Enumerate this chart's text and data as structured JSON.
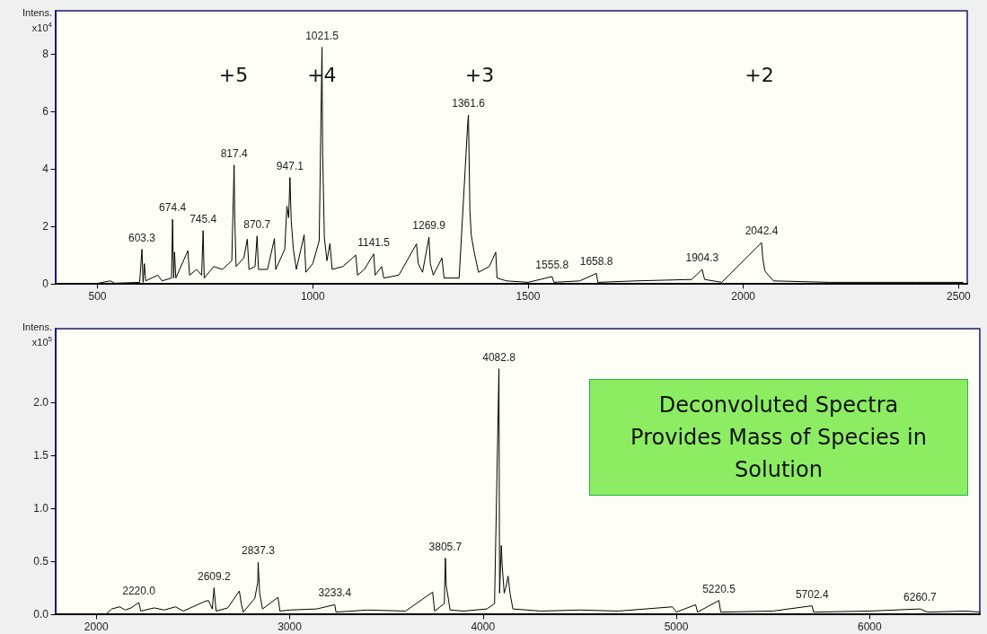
{
  "chart_data": [
    {
      "type": "line",
      "ylabel": "Intens.\nx10$^{4}$",
      "xlim": [
        403,
        2520
      ],
      "ylim": [
        0,
        9.5
      ],
      "xticks": [
        500,
        1000,
        1500,
        2000,
        2500
      ],
      "yticks": [
        0,
        2,
        4,
        6,
        8
      ],
      "grid": false,
      "marker": "none",
      "line_style": "solid",
      "series": [
        {
          "color": "#000000",
          "x": [
            495,
            530,
            540,
            598,
            603.3,
            606,
            609,
            612,
            640,
            650,
            672,
            674.4,
            677,
            679,
            682,
            710,
            714,
            730,
            742,
            745.4,
            748,
            770,
            790,
            812,
            817.4,
            819,
            822,
            840,
            848,
            852,
            866,
            870.7,
            874,
            895,
            911,
            914,
            935,
            940,
            944,
            947.1,
            950,
            955,
            962,
            980,
            984,
            1000,
            1015,
            1021.5,
            1023,
            1027,
            1033,
            1040,
            1045,
            1070,
            1100,
            1104,
            1120,
            1141.5,
            1145,
            1160,
            1165,
            1200,
            1241,
            1245,
            1255,
            1269.9,
            1273,
            1280,
            1300,
            1305,
            1340,
            1360,
            1361.6,
            1365,
            1368,
            1375,
            1385,
            1410,
            1425,
            1428,
            1450,
            1500,
            1555.8,
            1560,
            1620,
            1658.8,
            1662,
            1750,
            1880,
            1904.3,
            1910,
            1950,
            2042.4,
            2045,
            2050,
            2058,
            2070,
            2200,
            2400,
            2510
          ],
          "values": [
            0,
            0.1,
            0.02,
            0.05,
            1.2,
            0.05,
            0.7,
            0.1,
            0.3,
            0.1,
            0.2,
            2.24,
            0.2,
            1.1,
            0.2,
            1.15,
            0.3,
            0.5,
            0.3,
            1.85,
            0.2,
            0.6,
            0.5,
            0.8,
            4.13,
            2.2,
            0.6,
            0.9,
            1.55,
            0.5,
            0.6,
            1.66,
            0.5,
            0.5,
            1.57,
            0.5,
            1.2,
            2.7,
            2.3,
            3.7,
            2.2,
            1.2,
            0.5,
            1.7,
            0.4,
            0.7,
            1.5,
            8.23,
            4.57,
            1.6,
            0.8,
            1.4,
            0.5,
            0.6,
            1.0,
            0.3,
            0.5,
            1.04,
            0.3,
            0.6,
            0.2,
            0.3,
            1.39,
            0.7,
            0.4,
            1.62,
            0.7,
            0.3,
            0.9,
            0.2,
            0.2,
            5.6,
            5.87,
            2.55,
            1.7,
            1.1,
            0.4,
            0.6,
            1.1,
            0.2,
            0.1,
            0.05,
            0.25,
            0.05,
            0.1,
            0.36,
            0.05,
            0.1,
            0.15,
            0.5,
            0.15,
            0.05,
            1.43,
            0.9,
            0.45,
            0.3,
            0.1,
            0.05,
            0.05,
            0.05
          ]
        }
      ],
      "annotations": [
        {
          "text": "603.3",
          "x": 603.3,
          "y": 1.2
        },
        {
          "text": "674.4",
          "x": 674.4,
          "y": 2.24
        },
        {
          "text": "745.4",
          "x": 745.4,
          "y": 1.85
        },
        {
          "text": "817.4",
          "x": 817.4,
          "y": 4.13
        },
        {
          "text": "870.7",
          "x": 870.7,
          "y": 1.66
        },
        {
          "text": "947.1",
          "x": 947.1,
          "y": 3.7
        },
        {
          "text": "1021.5",
          "x": 1021.5,
          "y": 8.23
        },
        {
          "text": "1141.5",
          "x": 1141.5,
          "y": 1.04
        },
        {
          "text": "1269.9",
          "x": 1269.9,
          "y": 1.62
        },
        {
          "text": "1361.6",
          "x": 1361.6,
          "y": 5.87
        },
        {
          "text": "1555.8",
          "x": 1555.8,
          "y": 0.25
        },
        {
          "text": "1658.8",
          "x": 1658.8,
          "y": 0.36
        },
        {
          "text": "1904.3",
          "x": 1904.3,
          "y": 0.5
        },
        {
          "text": "2042.4",
          "x": 2042.4,
          "y": 1.43
        },
        "+5",
        "+4",
        "+3",
        "+2"
      ]
    },
    {
      "type": "line",
      "ylabel": "Intens.\nx10$^{5}$",
      "xlim": [
        1790,
        6570
      ],
      "ylim": [
        0,
        2.7
      ],
      "xticks": [
        2000,
        3000,
        4000,
        5000,
        6000
      ],
      "yticks": [
        {
          "value": 0,
          "label": "0.0"
        },
        {
          "value": 0.5,
          "label": "0.5"
        },
        {
          "value": 1,
          "label": "1.0"
        },
        {
          "value": 1.5,
          "label": "1.5"
        },
        {
          "value": 2,
          "label": "2.0"
        }
      ],
      "grid": false,
      "marker": "none",
      "line_style": "solid",
      "series": [
        {
          "color": "#000000",
          "x": [
            2050,
            2080,
            2120,
            2150,
            2180,
            2220.0,
            2230,
            2300,
            2350,
            2410,
            2450,
            2560,
            2580,
            2600,
            2609.2,
            2615,
            2620,
            2680,
            2740,
            2750,
            2760,
            2820,
            2835,
            2837.3,
            2845,
            2860,
            2940,
            2950,
            3000,
            3140,
            3233.4,
            3240,
            3400,
            3600,
            3740,
            3750,
            3800,
            3805.7,
            3810,
            3820,
            3830,
            3900,
            4020,
            4060,
            4082.8,
            4086,
            4095,
            4100,
            4110,
            4118,
            4130,
            4140,
            4155,
            4300,
            4500,
            4700,
            4980,
            5000,
            5100,
            5110,
            5220.5,
            5230,
            5500,
            5702.4,
            5710,
            6000,
            6260.7,
            6300,
            6500,
            6570
          ],
          "values": [
            0,
            0.05,
            0.07,
            0.04,
            0.06,
            0.11,
            0.03,
            0.06,
            0.04,
            0.07,
            0.03,
            0.12,
            0.13,
            0.05,
            0.25,
            0.12,
            0.03,
            0.06,
            0.22,
            0.1,
            0.02,
            0.15,
            0.3,
            0.49,
            0.2,
            0.05,
            0.16,
            0.03,
            0.04,
            0.05,
            0.09,
            0.02,
            0.04,
            0.03,
            0.21,
            0.03,
            0.1,
            0.53,
            0.27,
            0.16,
            0.04,
            0.03,
            0.05,
            0.1,
            2.32,
            0.2,
            0.65,
            0.45,
            0.2,
            0.25,
            0.36,
            0.2,
            0.05,
            0.03,
            0.04,
            0.03,
            0.07,
            0.02,
            0.09,
            0.02,
            0.13,
            0.02,
            0.03,
            0.08,
            0.02,
            0.03,
            0.05,
            0.02,
            0.03,
            0.02
          ]
        }
      ],
      "annotations": [
        {
          "text": "2220.0",
          "x": 2220.0,
          "y": 0.11
        },
        {
          "text": "2609.2",
          "x": 2609.2,
          "y": 0.25
        },
        {
          "text": "2837.3",
          "x": 2837.3,
          "y": 0.49
        },
        {
          "text": "3233.4",
          "x": 3233.4,
          "y": 0.09
        },
        {
          "text": "3805.7",
          "x": 3805.7,
          "y": 0.53
        },
        {
          "text": "4082.8",
          "x": 4082.8,
          "y": 2.32
        },
        {
          "text": "5220.5",
          "x": 5220.5,
          "y": 0.13
        },
        {
          "text": "5702.4",
          "x": 5702.4,
          "y": 0.08
        },
        {
          "text": "6260.7",
          "x": 6260.7,
          "y": 0.05
        },
        "Deconvoluted Spectra\nProvides Mass of Species in\nSolution"
      ]
    }
  ]
}
